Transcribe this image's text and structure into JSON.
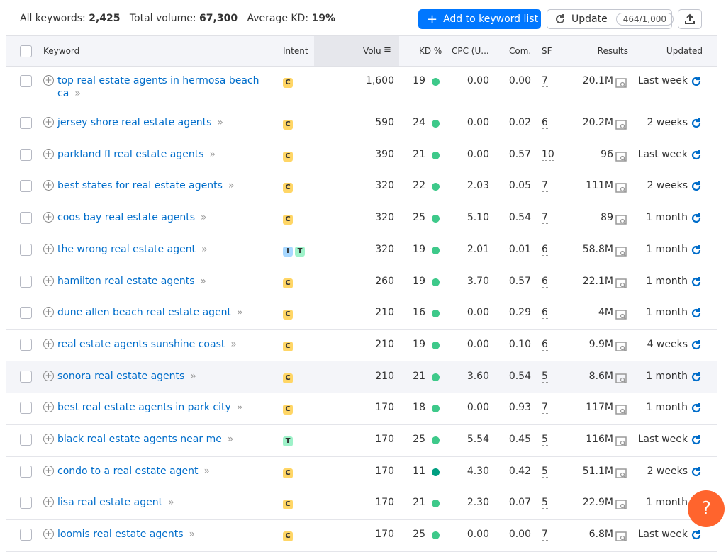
{
  "summary": {
    "keywords_label": "All keywords:",
    "keywords": "2,425",
    "volume_label": "Total volume:",
    "volume": "67,300",
    "kd_label": "Average KD:",
    "kd": "19%"
  },
  "buttons": {
    "add": "Add to keyword list",
    "update": "Update",
    "quota": "464/1,000",
    "help": "?"
  },
  "intent_colors": {
    "C": "#ffd666",
    "I": "#a8d8ff",
    "T": "#9ef2c9"
  },
  "columns": [
    "Keyword",
    "Intent",
    "Volu",
    "KD %",
    "CPC (U...",
    "Com.",
    "SF",
    "Results",
    "Updated"
  ],
  "rows": [
    {
      "keyword": "top real estate agents in hermosa beach ca",
      "intent": [
        "C"
      ],
      "volume": "1,600",
      "kd": "19",
      "kd_color": "#3ec98a",
      "cpc": "0.00",
      "com": "0.00",
      "sf": "7",
      "results": "20.1M",
      "updated": "Last week"
    },
    {
      "keyword": "jersey shore real estate agents",
      "intent": [
        "C"
      ],
      "volume": "590",
      "kd": "24",
      "kd_color": "#3ec98a",
      "cpc": "0.00",
      "com": "0.02",
      "sf": "6",
      "results": "20.2M",
      "updated": "2 weeks"
    },
    {
      "keyword": "parkland fl real estate agents",
      "intent": [
        "C"
      ],
      "volume": "390",
      "kd": "21",
      "kd_color": "#3ec98a",
      "cpc": "0.00",
      "com": "0.57",
      "sf": "10",
      "results": "96",
      "updated": "Last week"
    },
    {
      "keyword": "best states for real estate agents",
      "intent": [
        "C"
      ],
      "volume": "320",
      "kd": "22",
      "kd_color": "#3ec98a",
      "cpc": "2.03",
      "com": "0.05",
      "sf": "7",
      "results": "111M",
      "updated": "2 weeks"
    },
    {
      "keyword": "coos bay real estate agents",
      "intent": [
        "C"
      ],
      "volume": "320",
      "kd": "25",
      "kd_color": "#3ec98a",
      "cpc": "5.10",
      "com": "0.54",
      "sf": "7",
      "results": "89",
      "updated": "1 month"
    },
    {
      "keyword": "the wrong real estate agent",
      "intent": [
        "I",
        "T"
      ],
      "volume": "320",
      "kd": "19",
      "kd_color": "#3ec98a",
      "cpc": "2.01",
      "com": "0.01",
      "sf": "6",
      "results": "58.8M",
      "updated": "1 month"
    },
    {
      "keyword": "hamilton real estate agents",
      "intent": [
        "C"
      ],
      "volume": "260",
      "kd": "19",
      "kd_color": "#3ec98a",
      "cpc": "3.70",
      "com": "0.57",
      "sf": "6",
      "results": "22.1M",
      "updated": "1 month"
    },
    {
      "keyword": "dune allen beach real estate agent",
      "intent": [
        "C"
      ],
      "volume": "210",
      "kd": "16",
      "kd_color": "#3ec98a",
      "cpc": "0.00",
      "com": "0.29",
      "sf": "6",
      "results": "4M",
      "updated": "1 month"
    },
    {
      "keyword": "real estate agents sunshine coast",
      "intent": [
        "C"
      ],
      "volume": "210",
      "kd": "19",
      "kd_color": "#3ec98a",
      "cpc": "0.00",
      "com": "0.10",
      "sf": "6",
      "results": "9.9M",
      "updated": "4 weeks"
    },
    {
      "keyword": "sonora real estate agents",
      "intent": [
        "C"
      ],
      "volume": "210",
      "kd": "21",
      "kd_color": "#3ec98a",
      "cpc": "3.60",
      "com": "0.54",
      "sf": "5",
      "results": "8.6M",
      "updated": "1 month"
    },
    {
      "keyword": "best real estate agents in park city",
      "intent": [
        "C"
      ],
      "volume": "170",
      "kd": "18",
      "kd_color": "#3ec98a",
      "cpc": "0.00",
      "com": "0.93",
      "sf": "7",
      "results": "117M",
      "updated": "1 month"
    },
    {
      "keyword": "black real estate agents near me",
      "intent": [
        "T"
      ],
      "volume": "170",
      "kd": "25",
      "kd_color": "#3ec98a",
      "cpc": "5.54",
      "com": "0.45",
      "sf": "5",
      "results": "116M",
      "updated": "Last week"
    },
    {
      "keyword": "condo to a real estate agent",
      "intent": [
        "C"
      ],
      "volume": "170",
      "kd": "11",
      "kd_color": "#009f81",
      "cpc": "4.30",
      "com": "0.42",
      "sf": "5",
      "results": "51.1M",
      "updated": "2 weeks"
    },
    {
      "keyword": "lisa real estate agent",
      "intent": [
        "C"
      ],
      "volume": "170",
      "kd": "21",
      "kd_color": "#3ec98a",
      "cpc": "2.30",
      "com": "0.07",
      "sf": "5",
      "results": "22.9M",
      "updated": "1 month"
    },
    {
      "keyword": "loomis real estate agents",
      "intent": [
        "C"
      ],
      "volume": "170",
      "kd": "25",
      "kd_color": "#3ec98a",
      "cpc": "0.00",
      "com": "0.00",
      "sf": "7",
      "results": "6.8M",
      "updated": "Last week"
    }
  ]
}
